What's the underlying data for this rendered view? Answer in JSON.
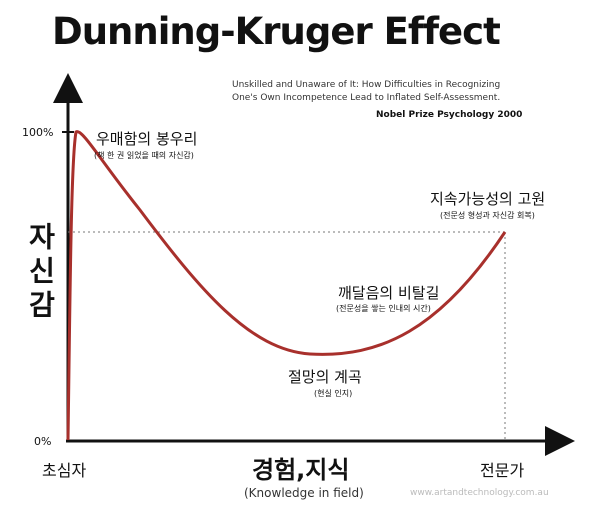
{
  "header": {
    "title": "Dunning-Kruger Effect",
    "subtitle": [
      "Unskilled and Unaware of It: How Difficulties in Recognizing",
      "One's Own Incompetence Lead to Inflated Self-Assessment."
    ],
    "source": "Nobel Prize Psychology  2000"
  },
  "axes": {
    "y_label": "자신감",
    "y_top": "100%",
    "y_bottom": "0%",
    "x_label": "경험,지식",
    "x_sublabel": "(Knowledge in field)",
    "x_start": "초심자",
    "x_end": "전문가"
  },
  "annotations": [
    {
      "label": "우매함의 봉우리",
      "note": "(책 한 권 읽었을 때의 자신감)"
    },
    {
      "label": "절망의 계곡",
      "note": "(현실 인지)"
    },
    {
      "label": "깨달음의 비탈길",
      "note": "(전문성을 쌓는 인내의 시간)"
    },
    {
      "label": "지속가능성의 고원",
      "note": "(전문성 형성과 자신감 회복)"
    }
  ],
  "watermark": "www.artandtechnology.com.au"
}
